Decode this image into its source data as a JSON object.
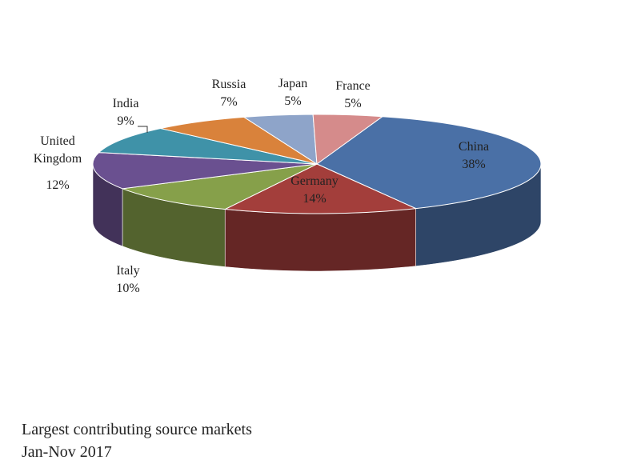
{
  "chart_data": {
    "type": "pie3d",
    "title": "Largest contributing source markets",
    "subtitle": "Jan-Nov 2017",
    "categories": [
      "China",
      "Germany",
      "Italy",
      "United Kingdom",
      "India",
      "Russia",
      "Japan",
      "France"
    ],
    "values": [
      38,
      14,
      10,
      12,
      9,
      7,
      5,
      5
    ],
    "value_labels": [
      "38%",
      "14%",
      "10%",
      "12%",
      "9%",
      "7%",
      "5%",
      "5%"
    ],
    "colors": [
      "#4a70a6",
      "#a33e3b",
      "#86a04a",
      "#6a5090",
      "#3f92a8",
      "#d9823b",
      "#8ea4c9",
      "#d58b8b"
    ]
  }
}
